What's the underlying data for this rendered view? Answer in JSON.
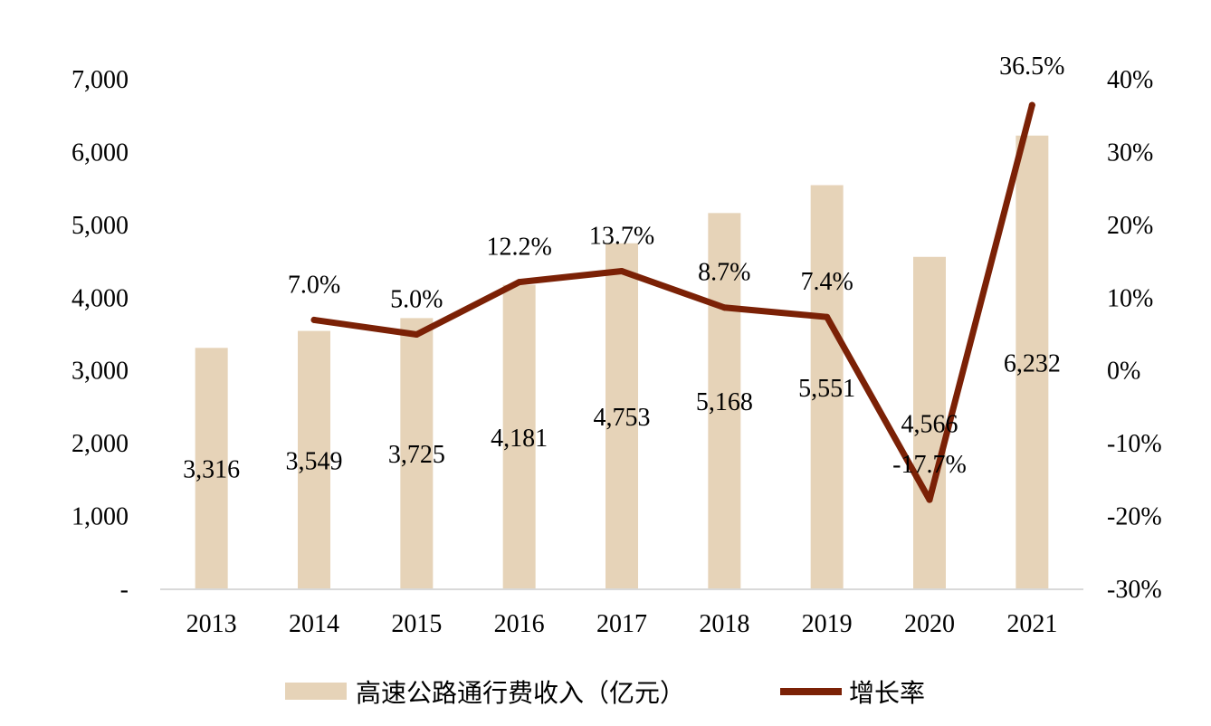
{
  "chart_data": {
    "type": "bar",
    "categories": [
      "2013",
      "2014",
      "2015",
      "2016",
      "2017",
      "2018",
      "2019",
      "2020",
      "2021"
    ],
    "series": [
      {
        "name": "高速公路通行费收入（亿元）",
        "type": "bar",
        "axis": "left",
        "values": [
          3316,
          3549,
          3725,
          4181,
          4753,
          5168,
          5551,
          4566,
          6232
        ],
        "labels": [
          "3,316",
          "3,549",
          "3,725",
          "4,181",
          "4,753",
          "5,168",
          "5,551",
          "4,566",
          "6,232"
        ],
        "color": "#e6d3b8"
      },
      {
        "name": "增长率",
        "type": "line",
        "axis": "right",
        "values": [
          null,
          7.0,
          5.0,
          12.2,
          13.7,
          8.7,
          7.4,
          -17.7,
          36.5
        ],
        "labels": [
          "",
          "7.0%",
          "5.0%",
          "12.2%",
          "13.7%",
          "8.7%",
          "7.4%",
          "-17.7%",
          "36.5%"
        ],
        "color": "#7b2106"
      }
    ],
    "y_left": {
      "ylim": [
        0,
        7000
      ],
      "ticks": [
        0,
        1000,
        2000,
        3000,
        4000,
        5000,
        6000,
        7000
      ],
      "tick_labels": [
        "-",
        "1,000",
        "2,000",
        "3,000",
        "4,000",
        "5,000",
        "6,000",
        "7,000"
      ]
    },
    "y_right": {
      "ylim": [
        -30,
        40
      ],
      "ticks": [
        -30,
        -20,
        -10,
        0,
        10,
        20,
        30,
        40
      ],
      "tick_labels": [
        "-30%",
        "-20%",
        "-10%",
        "0%",
        "10%",
        "20%",
        "30%",
        "40%"
      ]
    },
    "grid": false,
    "legend": "bottom",
    "title": "",
    "xlabel": "",
    "ylabel": ""
  }
}
